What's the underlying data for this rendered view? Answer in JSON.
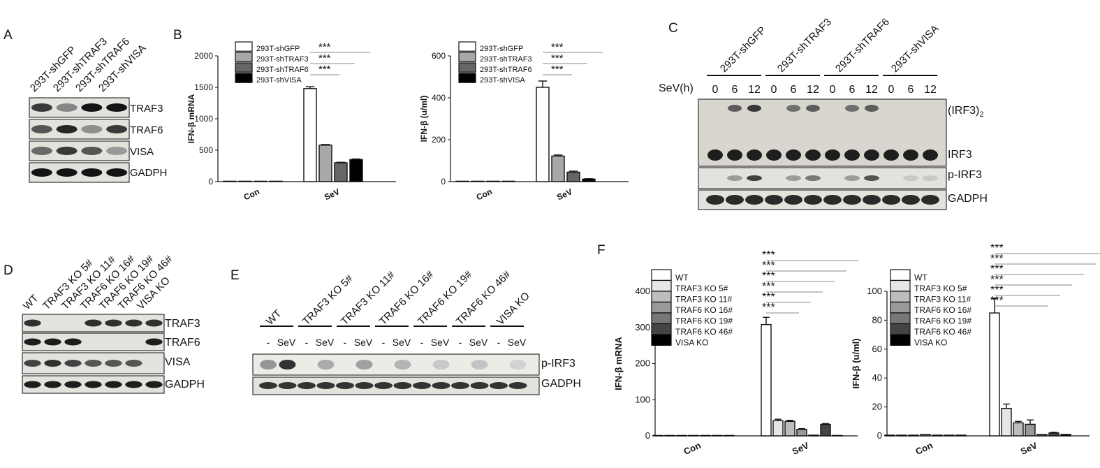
{
  "panels": {
    "A": "A",
    "B": "B",
    "C": "C",
    "D": "D",
    "E": "E",
    "F": "F"
  },
  "panel_a": {
    "lanes": [
      "293T-shGFP",
      "293T-shTRAF3",
      "293T-shTRAF6",
      "293T-shVISA"
    ],
    "blots": [
      "TRAF3",
      "TRAF6",
      "VISA",
      "GADPH"
    ],
    "intensity": {
      "TRAF3": [
        0.75,
        0.35,
        0.95,
        0.95
      ],
      "TRAF6": [
        0.6,
        0.85,
        0.3,
        0.75
      ],
      "VISA": [
        0.5,
        0.75,
        0.6,
        0.25
      ],
      "GADPH": [
        0.95,
        0.95,
        0.95,
        0.95
      ]
    }
  },
  "panel_c": {
    "lanes": [
      "293T-shGFP",
      "293T-shTRAF3",
      "293T-shTRAF6",
      "293T-shVISA"
    ],
    "time_label": "SeV(h)",
    "times": [
      "0",
      "6",
      "12"
    ],
    "blots": [
      "(IRF3)",
      "2",
      "IRF3",
      "p-IRF3",
      "GADPH"
    ]
  },
  "panel_d": {
    "lanes": [
      "WT",
      "TRAF3 KO 5#",
      "TRAF3 KO 11#",
      "TRAF6 KO 16#",
      "TRAF6 KO 19#",
      "TRAF6 KO 46#",
      "VISA KO"
    ],
    "blots": [
      "TRAF3",
      "TRAF6",
      "VISA",
      "GADPH"
    ],
    "intensity": {
      "TRAF3": [
        0.8,
        0,
        0,
        0.8,
        0.8,
        0.8,
        0.8
      ],
      "TRAF6": [
        0.9,
        0.9,
        0.9,
        0,
        0,
        0,
        0.9
      ],
      "VISA": [
        0.7,
        0.8,
        0.7,
        0.6,
        0.6,
        0.6,
        0
      ],
      "GADPH": [
        0.9,
        0.9,
        0.9,
        0.9,
        0.9,
        0.9,
        0.9
      ]
    }
  },
  "panel_e": {
    "lanes": [
      "WT",
      "TRAF3 KO 5#",
      "TRAF3 KO 11#",
      "TRAF6 KO 16#",
      "TRAF6 KO 19#",
      "TRAF6 KO 46#",
      "VISA KO"
    ],
    "conditions": [
      "-",
      "SeV"
    ],
    "blots": [
      "p-IRF3",
      "GADPH"
    ]
  },
  "chart_data": [
    {
      "type": "bar",
      "panel": "B-left",
      "ylabel": "IFN-β mRNA",
      "categories": [
        "Con",
        "SeV"
      ],
      "ylim": [
        0,
        2000
      ],
      "yticks": [
        "0",
        "500",
        "1000",
        "1500",
        "2000"
      ],
      "series": [
        {
          "name": "293T-shGFP",
          "color": "#ffffff",
          "values": [
            5,
            1480
          ],
          "err": [
            0,
            30
          ]
        },
        {
          "name": "293T-shTRAF3",
          "color": "#a8a8a8",
          "values": [
            3,
            580
          ],
          "err": [
            0,
            10
          ]
        },
        {
          "name": "293T-shTRAF6",
          "color": "#666666",
          "values": [
            0,
            300
          ],
          "err": [
            0,
            8
          ]
        },
        {
          "name": "293T-shVISA",
          "color": "#000000",
          "values": [
            0,
            350
          ],
          "err": [
            0,
            10
          ]
        }
      ],
      "significance": [
        "***",
        "***",
        "***"
      ]
    },
    {
      "type": "bar",
      "panel": "B-right",
      "ylabel": "IFN-β (u/ml)",
      "categories": [
        "Con",
        "SeV"
      ],
      "ylim": [
        0,
        600
      ],
      "yticks": [
        "0",
        "200",
        "400",
        "600"
      ],
      "series": [
        {
          "name": "293T-shGFP",
          "color": "#ffffff",
          "values": [
            1,
            450
          ],
          "err": [
            0,
            30
          ]
        },
        {
          "name": "293T-shTRAF3",
          "color": "#a8a8a8",
          "values": [
            1,
            122
          ],
          "err": [
            0,
            5
          ]
        },
        {
          "name": "293T-shTRAF6",
          "color": "#666666",
          "values": [
            1,
            45
          ],
          "err": [
            0,
            5
          ]
        },
        {
          "name": "293T-shVISA",
          "color": "#000000",
          "values": [
            0,
            12
          ],
          "err": [
            0,
            2
          ]
        }
      ],
      "significance": [
        "***",
        "***",
        "***"
      ]
    },
    {
      "type": "bar",
      "panel": "F-left",
      "ylabel": "IFN-β mRNA",
      "categories": [
        "Con",
        "SeV"
      ],
      "ylim": [
        0,
        400
      ],
      "yticks": [
        "0",
        "100",
        "200",
        "300",
        "400"
      ],
      "series": [
        {
          "name": "WT",
          "color": "#ffffff",
          "values": [
            1,
            308
          ],
          "err": [
            0,
            20
          ]
        },
        {
          "name": "TRAF3 KO 5#",
          "color": "#e6e6e6",
          "values": [
            1,
            42
          ],
          "err": [
            0,
            4
          ]
        },
        {
          "name": "TRAF3 KO 11#",
          "color": "#bdbdbd",
          "values": [
            1,
            40
          ],
          "err": [
            0,
            3
          ]
        },
        {
          "name": "TRAF6 KO 16#",
          "color": "#999999",
          "values": [
            1,
            18
          ],
          "err": [
            0,
            2
          ]
        },
        {
          "name": "TRAF6 KO 19#",
          "color": "#777777",
          "values": [
            1,
            2
          ],
          "err": [
            0,
            0
          ]
        },
        {
          "name": "TRAF6 KO 46#",
          "color": "#444444",
          "values": [
            1,
            32
          ],
          "err": [
            0,
            2
          ]
        },
        {
          "name": "VISA KO",
          "color": "#000000",
          "values": [
            1,
            1
          ],
          "err": [
            0,
            0
          ]
        }
      ],
      "significance": [
        "***",
        "***",
        "***",
        "***",
        "***",
        "***"
      ]
    },
    {
      "type": "bar",
      "panel": "F-right",
      "ylabel": "IFN-β (u/ml)",
      "categories": [
        "Con",
        "SeV"
      ],
      "ylim": [
        0,
        100
      ],
      "yticks": [
        "0",
        "20",
        "40",
        "60",
        "80",
        "100"
      ],
      "series": [
        {
          "name": "WT",
          "color": "#ffffff",
          "values": [
            0.5,
            85
          ],
          "err": [
            0,
            10
          ]
        },
        {
          "name": "TRAF3 KO 5#",
          "color": "#e6e6e6",
          "values": [
            0.5,
            19
          ],
          "err": [
            0,
            3
          ]
        },
        {
          "name": "TRAF3 KO 11#",
          "color": "#bdbdbd",
          "values": [
            0.5,
            9
          ],
          "err": [
            0,
            1
          ]
        },
        {
          "name": "TRAF6 KO 16#",
          "color": "#999999",
          "values": [
            1,
            8
          ],
          "err": [
            0,
            3
          ]
        },
        {
          "name": "TRAF6 KO 19#",
          "color": "#777777",
          "values": [
            0.5,
            1
          ],
          "err": [
            0,
            0
          ]
        },
        {
          "name": "TRAF6 KO 46#",
          "color": "#444444",
          "values": [
            0.5,
            2
          ],
          "err": [
            0,
            0.5
          ]
        },
        {
          "name": "VISA KO",
          "color": "#000000",
          "values": [
            0.5,
            1
          ],
          "err": [
            0,
            0
          ]
        }
      ],
      "significance": [
        "***",
        "***",
        "***",
        "***",
        "***",
        "***"
      ]
    }
  ]
}
